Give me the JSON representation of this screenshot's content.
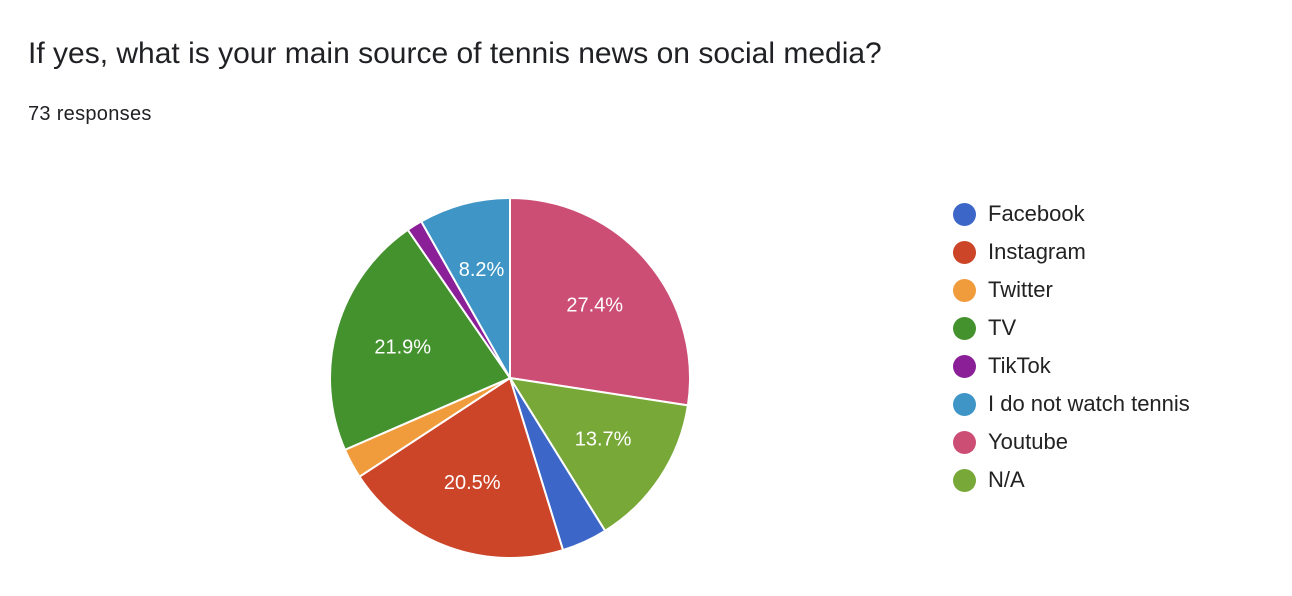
{
  "question": {
    "title": "If yes, what is your main source of tennis news on social media?",
    "responses": "73 responses"
  },
  "chart_data": {
    "type": "pie",
    "total": 73,
    "start": "12 o'clock, clockwise",
    "legend_position": "right",
    "slices": [
      {
        "label": "Youtube",
        "percent": 27.4,
        "color": "#cc4e75",
        "value_label": "27.4%"
      },
      {
        "label": "N/A",
        "percent": 13.7,
        "color": "#77a838",
        "value_label": "13.7%"
      },
      {
        "label": "Facebook",
        "percent": 4.1,
        "color": "#3c67c9",
        "value_label": ""
      },
      {
        "label": "Instagram",
        "percent": 20.5,
        "color": "#cc4528",
        "value_label": "20.5%"
      },
      {
        "label": "Twitter",
        "percent": 2.7,
        "color": "#f09b3c",
        "value_label": ""
      },
      {
        "label": "TV",
        "percent": 21.9,
        "color": "#44922e",
        "value_label": "21.9%"
      },
      {
        "label": "TikTok",
        "percent": 1.4,
        "color": "#8a1f98",
        "value_label": ""
      },
      {
        "label": "I do not watch tennis",
        "percent": 8.2,
        "color": "#3f96c6",
        "value_label": "8.2%"
      }
    ],
    "legend": [
      {
        "label": "Facebook",
        "color": "#3c67c9"
      },
      {
        "label": "Instagram",
        "color": "#cc4528"
      },
      {
        "label": "Twitter",
        "color": "#f09b3c"
      },
      {
        "label": "TV",
        "color": "#44922e"
      },
      {
        "label": "TikTok",
        "color": "#8a1f98"
      },
      {
        "label": "I do not watch tennis",
        "color": "#3f96c6"
      },
      {
        "label": "Youtube",
        "color": "#cc4e75"
      },
      {
        "label": "N/A",
        "color": "#77a838"
      }
    ]
  }
}
